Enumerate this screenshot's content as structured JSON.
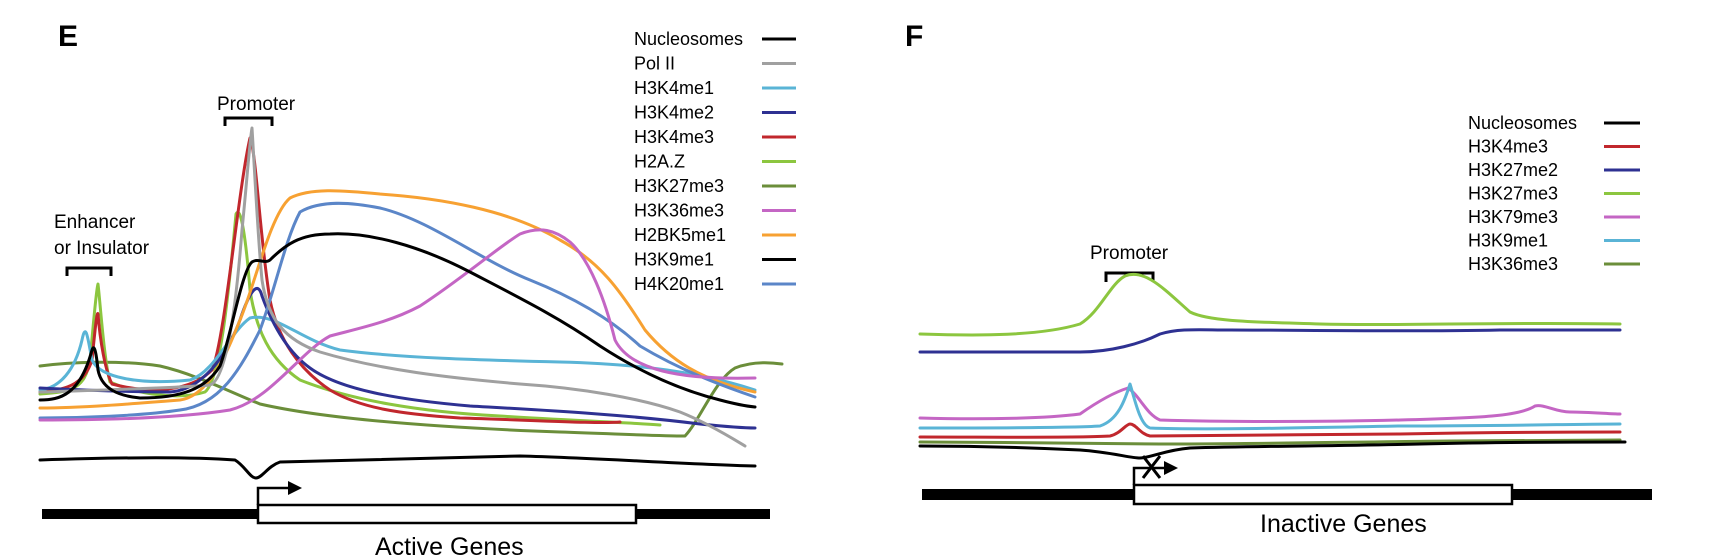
{
  "panel_e": {
    "letter": "E",
    "promoter_label": "Promoter",
    "enhancer_label_line1": "Enhancer",
    "enhancer_label_line2": "or Insulator",
    "gene_label": "Active Genes",
    "legend": [
      {
        "name": "Nucleosomes",
        "color": "#000000"
      },
      {
        "name": "Pol II",
        "color": "#a0a0a0"
      },
      {
        "name": "H3K4me1",
        "color": "#5ab4d6"
      },
      {
        "name": "H3K4me2",
        "color": "#2e3192"
      },
      {
        "name": "H3K4me3",
        "color": "#c1272d"
      },
      {
        "name": "H2A.Z",
        "color": "#8cc63f"
      },
      {
        "name": "H3K27me3",
        "color": "#6b8e3a"
      },
      {
        "name": "H3K36me3",
        "color": "#c466c4"
      },
      {
        "name": "H2BK5me1",
        "color": "#f7a132"
      },
      {
        "name": "H3K9me1",
        "color": "#000000"
      },
      {
        "name": "H4K20me1",
        "color": "#5b86c8"
      }
    ]
  },
  "panel_f": {
    "letter": "F",
    "promoter_label": "Promoter",
    "gene_label": "Inactive Genes",
    "legend": [
      {
        "name": "Nucleosomes",
        "color": "#000000"
      },
      {
        "name": "H3K4me3",
        "color": "#c1272d"
      },
      {
        "name": "H3K27me2",
        "color": "#2e3192"
      },
      {
        "name": "H3K27me3",
        "color": "#8cc63f"
      },
      {
        "name": "H3K79me3",
        "color": "#c466c4"
      },
      {
        "name": "H3K9me1",
        "color": "#5ab4d6"
      },
      {
        "name": "H3K36me3",
        "color": "#6b8e3a"
      }
    ]
  }
}
